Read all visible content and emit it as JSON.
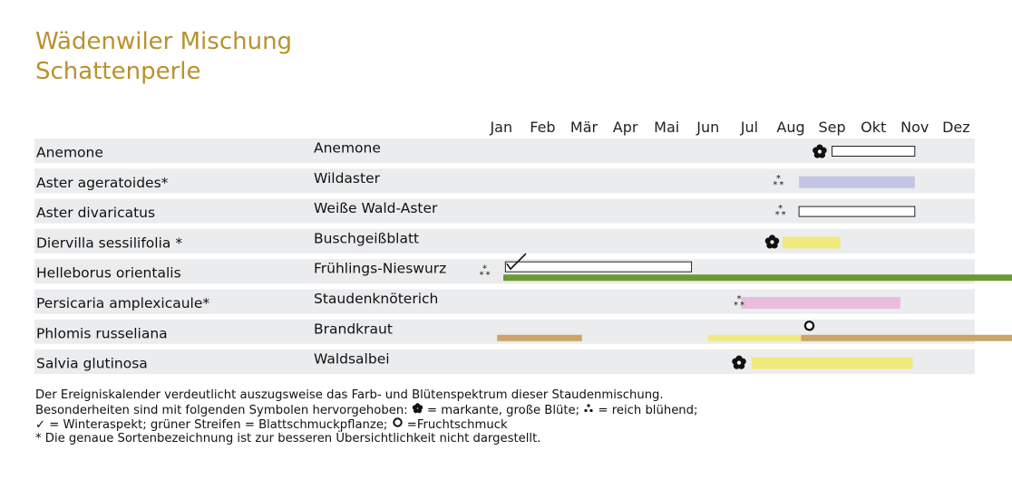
{
  "title": {
    "line1": "Wädenwiler Mischung",
    "line2": "Schattenperle"
  },
  "colors": {
    "title": "#b8922e",
    "row_background": "#ebecee",
    "foliage": "#6a9a30",
    "lavender": "#c3c3e4",
    "pink": "#e9bedc",
    "yellow": "#f0ea7c",
    "tan": "#cda468",
    "white_bar_border": "#222222"
  },
  "chart_data": {
    "type": "table",
    "months": [
      "Jan",
      "Feb",
      "Mär",
      "Apr",
      "Mai",
      "Jun",
      "Jul",
      "Aug",
      "Sep",
      "Okt",
      "Nov",
      "Dez"
    ],
    "rows": [
      {
        "latin": "Anemone",
        "german": "Anemone",
        "bars": [
          {
            "start": 8.5,
            "end": 10.5,
            "color": "#ffffff",
            "outlined": true
          }
        ],
        "symbols": [
          {
            "type": "markant",
            "month": 8.2
          }
        ]
      },
      {
        "latin": "Aster ageratoides*",
        "german": "Wildaster",
        "bars": [
          {
            "start": 7.7,
            "end": 10.5,
            "color": "#c3c3e4"
          }
        ],
        "symbols": [
          {
            "type": "reich",
            "month": 7.2
          }
        ]
      },
      {
        "latin": "Aster divaricatus",
        "german": "Weiße Wald-Aster",
        "bars": [
          {
            "start": 7.7,
            "end": 10.5,
            "color": "#ffffff",
            "outlined": true
          }
        ],
        "symbols": [
          {
            "type": "reich",
            "month": 7.25
          }
        ]
      },
      {
        "latin": "Diervilla sessilifolia *",
        "german": "Buschgeißblatt",
        "bars": [
          {
            "start": 7.3,
            "end": 8.7,
            "color": "#f0ea7c"
          }
        ],
        "symbols": [
          {
            "type": "markant",
            "month": 7.05
          }
        ]
      },
      {
        "latin": "Helleborus orientalis",
        "german": "Frühlings-Nieswurz",
        "bars": [
          {
            "start": 0.6,
            "end": 5.1,
            "color": "#ffffff",
            "outlined": true
          },
          {
            "start": 0.55,
            "end": 12.95,
            "color": "#6a9a30",
            "thin": true
          }
        ],
        "symbols": [
          {
            "type": "reich",
            "month": 0.1
          },
          {
            "type": "winter",
            "month": 0.7
          }
        ]
      },
      {
        "latin": "Persicaria amplexicaule*",
        "german": "Staudenknöterich",
        "bars": [
          {
            "start": 6.3,
            "end": 10.15,
            "color": "#e9bedc"
          }
        ],
        "symbols": [
          {
            "type": "reich",
            "month": 6.25
          }
        ]
      },
      {
        "latin": "Phlomis russeliana",
        "german": "Brandkraut",
        "bars": [
          {
            "start": 0.4,
            "end": 2.45,
            "color": "#cda468",
            "thin": true
          },
          {
            "start": 5.5,
            "end": 7.75,
            "color": "#f0ea7c",
            "thin": true
          },
          {
            "start": 7.75,
            "end": 12.95,
            "color": "#cda468",
            "thin": true
          }
        ],
        "symbols": [
          {
            "type": "frucht",
            "month": 7.95
          }
        ]
      },
      {
        "latin": "Salvia glutinosa",
        "german": "Waldsalbei",
        "bars": [
          {
            "start": 6.55,
            "end": 10.45,
            "color": "#f0ea7c"
          }
        ],
        "symbols": [
          {
            "type": "markant",
            "month": 6.25
          }
        ]
      }
    ]
  },
  "legend": {
    "line1": "Der Ereigniskalender verdeutlicht auszugsweise das Farb- und Blütenspektrum dieser Staudenmischung.",
    "line2_a": "Besonderheiten sind mit folgenden Symbolen hervorgehoben: ",
    "line2_b": " = markante, große Blüte; ",
    "line2_c": " = reich blühend;",
    "line3_a": "✓ = Winteraspekt; grüner Streifen = Blattschmuckpflanze; ",
    "line3_b": " =Fruchtschmuck",
    "line4": "* Die genaue Sortenbezeichnung ist zur besseren Übersichtlichkeit nicht dargestellt."
  }
}
